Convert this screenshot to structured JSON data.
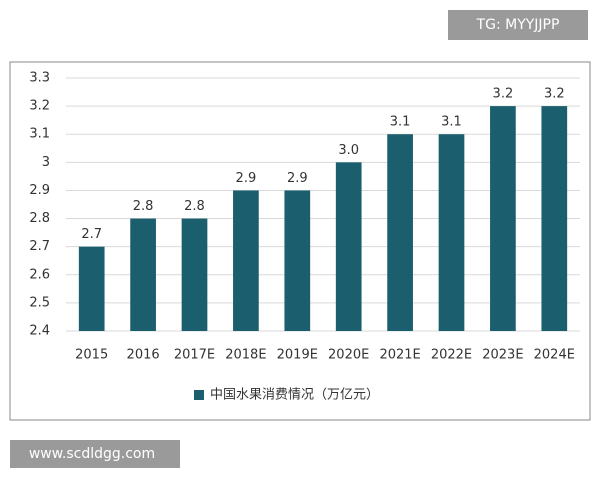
{
  "chart_data": {
    "type": "bar",
    "categories": [
      "2015",
      "2016",
      "2017E",
      "2018E",
      "2019E",
      "2020E",
      "2021E",
      "2022E",
      "2023E",
      "2024E"
    ],
    "series": [
      {
        "name": "中国水果消费情况（万亿元）",
        "color": "#1b5e6e",
        "values": [
          2.7,
          2.8,
          2.8,
          2.9,
          2.9,
          3,
          3.1,
          3.1,
          3.2,
          3.2
        ],
        "value_labels": [
          "2.7",
          "2.8",
          "2.8",
          "2.9",
          "2.9",
          "3.0",
          "3.1",
          "3.1",
          "3.2",
          "3.2"
        ]
      }
    ],
    "ylim": [
      2.4,
      3.3
    ],
    "yticks": [
      2.4,
      2.5,
      2.6,
      2.7,
      2.8,
      2.9,
      3,
      3.1,
      3.2,
      3.3
    ],
    "grid": true,
    "legend": "bottom"
  },
  "watermarks": [
    "TG: MYYJJPP",
    "www.scdldgg.com"
  ]
}
